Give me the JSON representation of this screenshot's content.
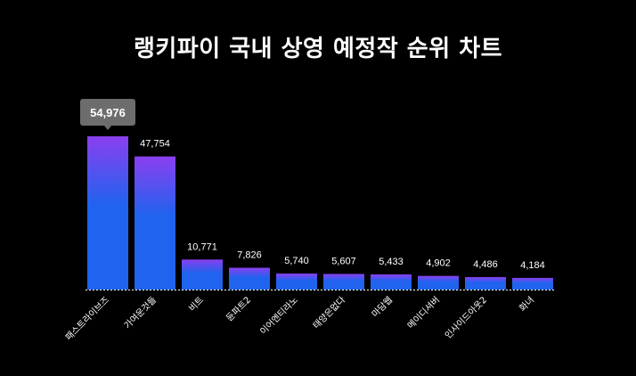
{
  "title": "랭키파이 국내 상영 예정작 순위 차트",
  "chart_data": {
    "type": "bar",
    "title": "랭키파이 국내 상영 예정작 순위 차트",
    "categories": [
      "패스트라이브즈",
      "가여운것들",
      "비트",
      "듄파트2",
      "이어엔티라노",
      "태양은없다",
      "마담웹",
      "메이디셔버",
      "인사이드아웃2",
      "화녀"
    ],
    "values": [
      54976,
      47754,
      10771,
      7826,
      5740,
      5607,
      5433,
      4902,
      4486,
      4184
    ],
    "value_labels": [
      "54,976",
      "47,754",
      "10,771",
      "7,826",
      "5,740",
      "5,607",
      "5,433",
      "4,902",
      "4,486",
      "4,184"
    ],
    "highlight_index": 0,
    "ylim": [
      0,
      54976
    ],
    "grid": false,
    "colors": {
      "bar_top": "#8a3ff0",
      "bar_bottom": "#1f63ee",
      "tooltip_bg": "#6d6d6d",
      "baseline": "#ffffff"
    }
  }
}
